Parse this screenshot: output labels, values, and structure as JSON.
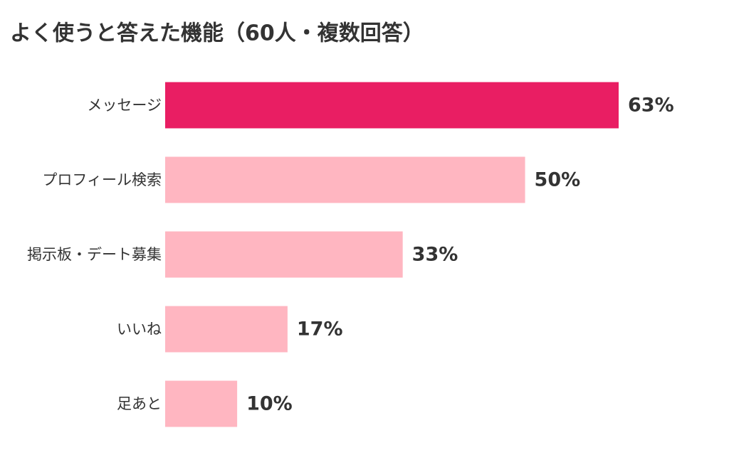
{
  "chart_data": {
    "type": "bar",
    "orientation": "horizontal",
    "title": "よく使うと答えた機能（60人・複数回答）",
    "categories": [
      "メッセージ",
      "プロフィール検索",
      "掲示板・デート募集",
      "いいね",
      "足あと"
    ],
    "values": [
      63,
      50,
      33,
      17,
      10
    ],
    "value_labels": [
      "63%",
      "50%",
      "33%",
      "17%",
      "10%"
    ],
    "colors": [
      "#e91e63",
      "#ffb6c1",
      "#ffb6c1",
      "#ffb6c1",
      "#ffb6c1"
    ]
  }
}
